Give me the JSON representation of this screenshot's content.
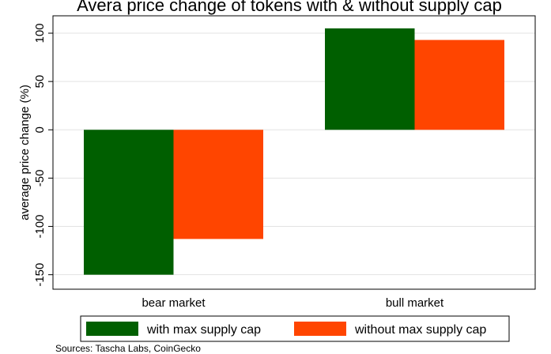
{
  "chart_data": {
    "type": "bar",
    "title": "Avera price change of tokens with & without supply cap",
    "xlabel": "",
    "ylabel": "average price change (%)",
    "categories": [
      "bear market",
      "bull market"
    ],
    "series": [
      {
        "name": "with max supply cap",
        "color": "#005f00",
        "values": [
          -150,
          105
        ]
      },
      {
        "name": "without max supply cap",
        "color": "#ff4500",
        "values": [
          -113,
          93
        ]
      }
    ],
    "yticks": [
      -150,
      -100,
      -50,
      0,
      50,
      100
    ],
    "ylim": [
      -165,
      118
    ],
    "grid": true,
    "legend": "bottom"
  },
  "source": "Sources: Tascha Labs, CoinGecko"
}
